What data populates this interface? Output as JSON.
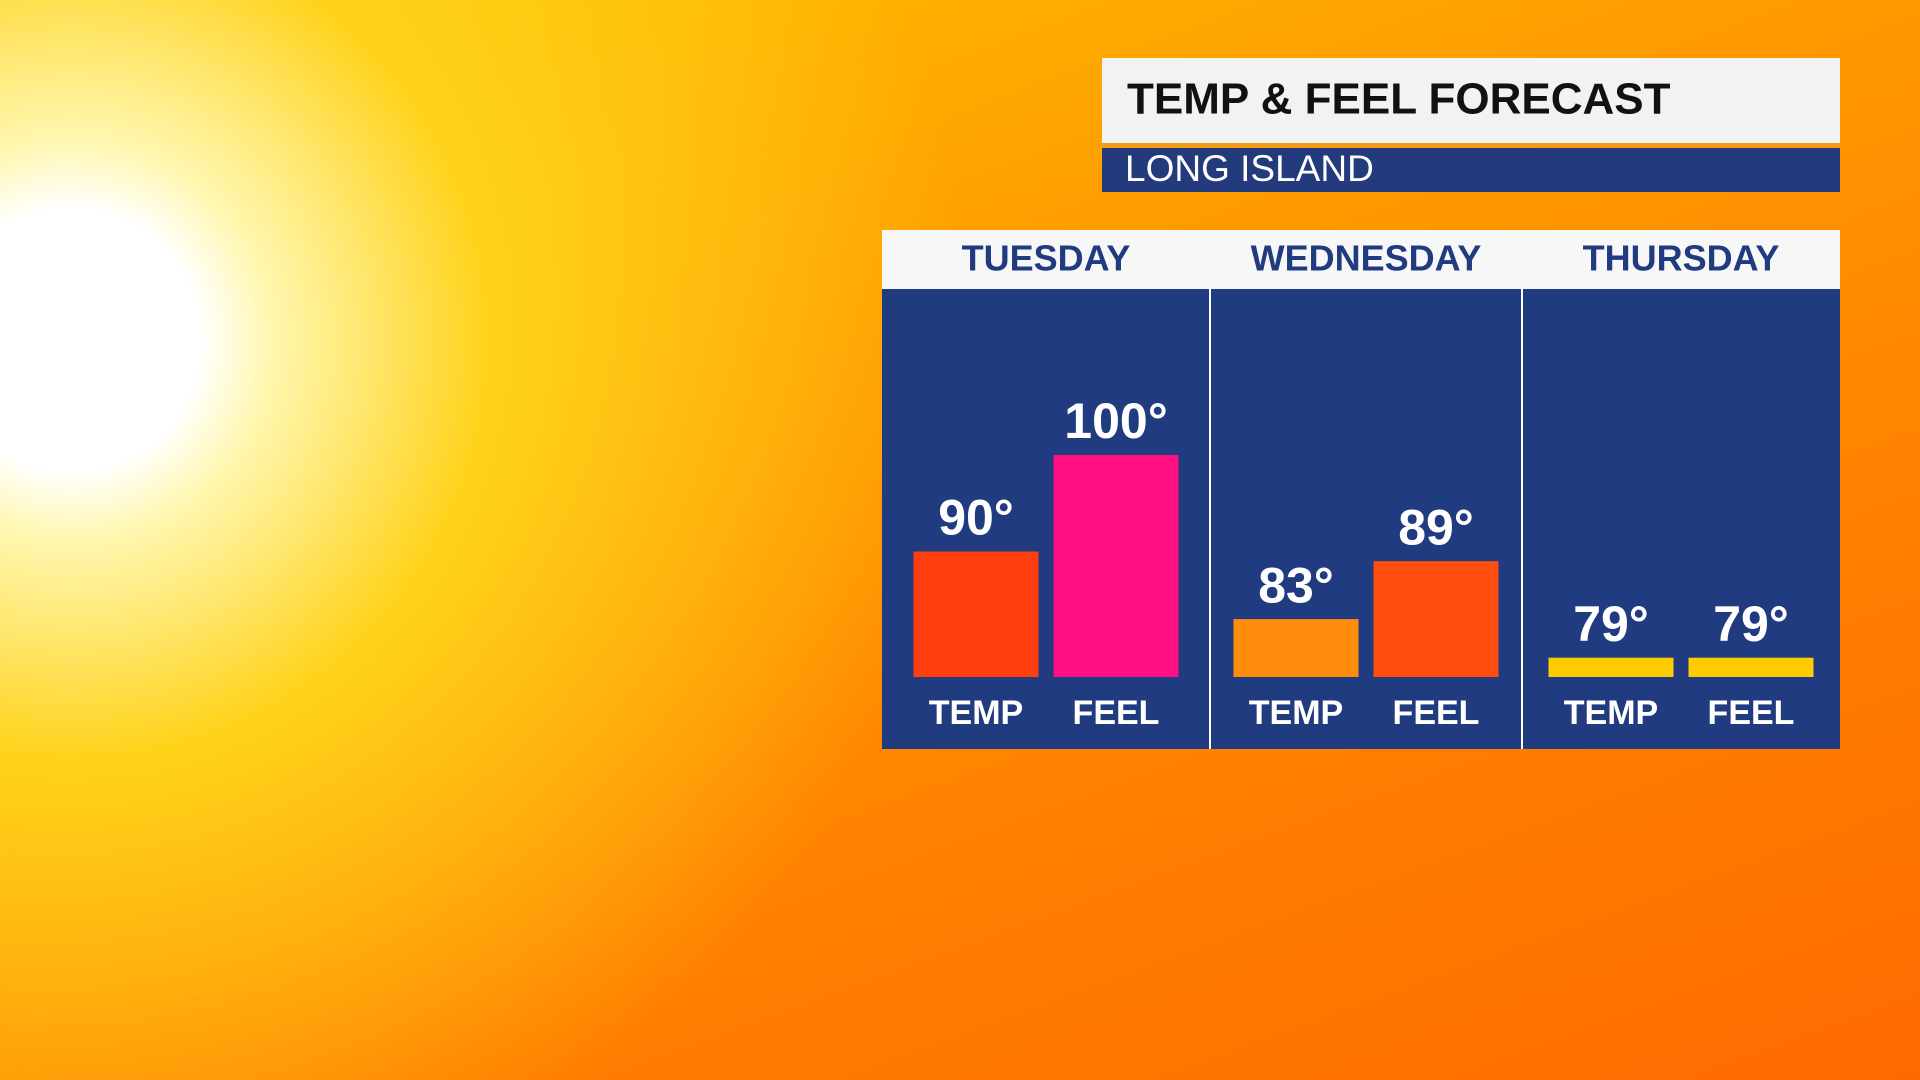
{
  "chart_data": {
    "type": "bar",
    "title": "TEMP & FEEL FORECAST",
    "subtitle": "LONG ISLAND",
    "categories": [
      "TUESDAY",
      "WEDNESDAY",
      "THURSDAY"
    ],
    "series": [
      {
        "name": "TEMP",
        "values": [
          90,
          83,
          79
        ],
        "value_labels": [
          "90°",
          "83°",
          "79°"
        ],
        "colors": [
          "#ff3d0f",
          "#ff8c0a",
          "#ffcc00"
        ]
      },
      {
        "name": "FEEL",
        "values": [
          100,
          89,
          79
        ],
        "value_labels": [
          "100°",
          "89°",
          "79°"
        ],
        "colors": [
          "#ff0f82",
          "#ff4d0d",
          "#ffcc00"
        ]
      }
    ],
    "ylim": [
      77,
      100
    ]
  }
}
